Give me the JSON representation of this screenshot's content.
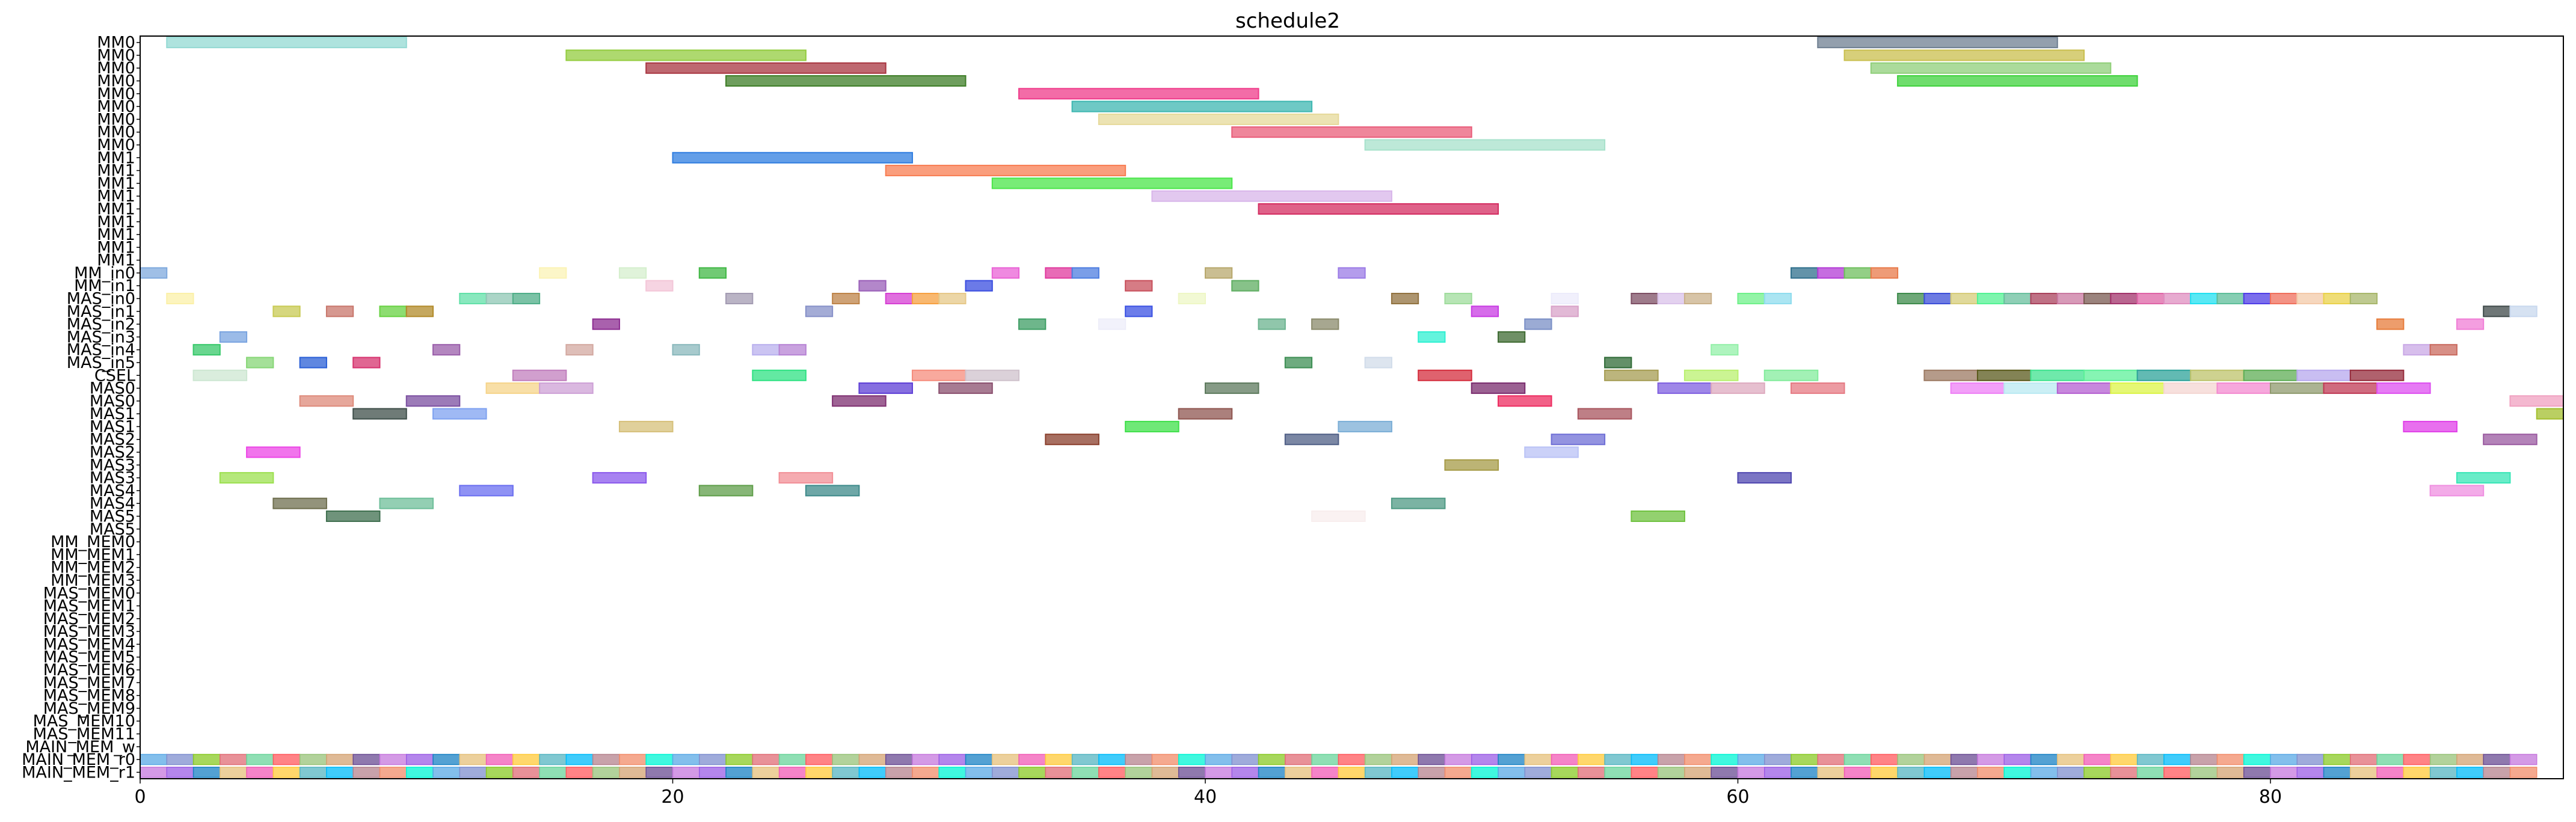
{
  "chart_data": {
    "type": "gantt",
    "title": "schedule2",
    "xlim": [
      0,
      91
    ],
    "xticks": [
      0,
      20,
      40,
      60,
      80
    ],
    "grid": false,
    "rows": [
      "MM0",
      "MM0",
      "MM0",
      "MM0",
      "MM0",
      "MM0",
      "MM0",
      "MM0",
      "MM0",
      "MM1",
      "MM1",
      "MM1",
      "MM1",
      "MM1",
      "MM1",
      "MM1",
      "MM1",
      "MM1",
      "MM_in0",
      "MM_in1",
      "MAS_in0",
      "MAS_in1",
      "MAS_in2",
      "MAS_in3",
      "MAS_in4",
      "MAS_in5",
      "CSEL",
      "MAS0",
      "MAS0",
      "MAS1",
      "MAS1",
      "MAS2",
      "MAS2",
      "MAS3",
      "MAS3",
      "MAS4",
      "MAS4",
      "MAS5",
      "MAS5",
      "MM_MEM0",
      "MM_MEM1",
      "MM_MEM2",
      "MM_MEM3",
      "MAS_MEM0",
      "MAS_MEM1",
      "MAS_MEM2",
      "MAS_MEM3",
      "MAS_MEM4",
      "MAS_MEM5",
      "MAS_MEM6",
      "MAS_MEM7",
      "MAS_MEM8",
      "MAS_MEM9",
      "MAS_MEM10",
      "MAS_MEM11",
      "MAIN_MEM_w",
      "MAIN_MEM_r0",
      "MAIN_MEM_r1"
    ],
    "palette": [
      "#5aa9e6",
      "#e06c75",
      "#98c379",
      "#c678dd",
      "#e5c07b",
      "#56b6c2",
      "#f28c6a",
      "#7f8fcf",
      "#6ad49b",
      "#d4a373",
      "#9b5de5",
      "#f15bb5",
      "#00bbf9",
      "#00f5d4",
      "#8ac926",
      "#ff595e",
      "#6a4c93",
      "#1982c4",
      "#ffca3a",
      "#b5838d"
    ],
    "bars": [
      {
        "row": 0,
        "start": 1,
        "end": 10,
        "color": "#93d9d3"
      },
      {
        "row": 0,
        "start": 63,
        "end": 72,
        "color": "#6f7f91"
      },
      {
        "row": 1,
        "start": 16,
        "end": 25,
        "color": "#93cc3f"
      },
      {
        "row": 1,
        "start": 64,
        "end": 73,
        "color": "#c9bf4e"
      },
      {
        "row": 2,
        "start": 19,
        "end": 28,
        "color": "#a83540"
      },
      {
        "row": 2,
        "start": 65,
        "end": 74,
        "color": "#8fcf79"
      },
      {
        "row": 3,
        "start": 22,
        "end": 31,
        "color": "#3e7d27"
      },
      {
        "row": 3,
        "start": 66,
        "end": 75,
        "color": "#3fd23c"
      },
      {
        "row": 4,
        "start": 33,
        "end": 42,
        "color": "#ef3b8a"
      },
      {
        "row": 5,
        "start": 35,
        "end": 44,
        "color": "#3eb7b1"
      },
      {
        "row": 6,
        "start": 36,
        "end": 45,
        "color": "#e6d99a"
      },
      {
        "row": 7,
        "start": 41,
        "end": 50,
        "color": "#e95d7a"
      },
      {
        "row": 8,
        "start": 46,
        "end": 55,
        "color": "#a7e1cb"
      },
      {
        "row": 9,
        "start": 20,
        "end": 29,
        "color": "#2f7de0"
      },
      {
        "row": 10,
        "start": 28,
        "end": 37,
        "color": "#f87d52"
      },
      {
        "row": 11,
        "start": 32,
        "end": 41,
        "color": "#4be64a"
      },
      {
        "row": 12,
        "start": 38,
        "end": 47,
        "color": "#d8b5ea"
      },
      {
        "row": 13,
        "start": 42,
        "end": 51,
        "color": "#d42d61"
      },
      {
        "row": 18,
        "start": 0,
        "end": 1,
        "color": "#7fa9dd"
      },
      {
        "row": 18,
        "start": 15,
        "end": 16,
        "color": "#fbf3b5"
      },
      {
        "row": 18,
        "start": 18,
        "end": 19,
        "color": "#d5efcd"
      },
      {
        "row": 18,
        "start": 21,
        "end": 22,
        "color": "#41b845"
      },
      {
        "row": 18,
        "start": 32,
        "end": 33,
        "color": "#ea62d6"
      },
      {
        "row": 18,
        "start": 34,
        "end": 35,
        "color": "#e03a9e"
      },
      {
        "row": 18,
        "start": 35,
        "end": 36,
        "color": "#4d7de0"
      },
      {
        "row": 18,
        "start": 40,
        "end": 41,
        "color": "#b8a86d"
      },
      {
        "row": 18,
        "start": 45,
        "end": 46,
        "color": "#9b7be6"
      },
      {
        "row": 18,
        "start": 62,
        "end": 63,
        "color": "#2f6f8c"
      },
      {
        "row": 18,
        "start": 63,
        "end": 64,
        "color": "#b33bd6"
      },
      {
        "row": 18,
        "start": 64,
        "end": 65,
        "color": "#6fbf5e"
      },
      {
        "row": 18,
        "start": 65,
        "end": 66,
        "color": "#e87a4a"
      },
      {
        "row": 19,
        "start": 19,
        "end": 20,
        "color": "#f3c6d8"
      },
      {
        "row": 19,
        "start": 27,
        "end": 28,
        "color": "#9a5fb8"
      },
      {
        "row": 19,
        "start": 31,
        "end": 32,
        "color": "#3a4de0"
      },
      {
        "row": 19,
        "start": 37,
        "end": 38,
        "color": "#c8505c"
      },
      {
        "row": 19,
        "start": 41,
        "end": 42,
        "color": "#5fae62"
      },
      {
        "row": 20,
        "start": 1,
        "end": 2,
        "color": "#fbf0a8"
      },
      {
        "row": 20,
        "start": 12,
        "end": 13,
        "color": "#62e0a8"
      },
      {
        "row": 20,
        "start": 13,
        "end": 14,
        "color": "#8fc7b4"
      },
      {
        "row": 20,
        "start": 14,
        "end": 15,
        "color": "#4fae88"
      },
      {
        "row": 20,
        "start": 22,
        "end": 23,
        "color": "#a39bb2"
      },
      {
        "row": 20,
        "start": 26,
        "end": 27,
        "color": "#bd8348"
      },
      {
        "row": 20,
        "start": 28,
        "end": 29,
        "color": "#d63fd3"
      },
      {
        "row": 20,
        "start": 29,
        "end": 30,
        "color": "#f6a040"
      },
      {
        "row": 20,
        "start": 30,
        "end": 31,
        "color": "#e6c888"
      },
      {
        "row": 20,
        "start": 39,
        "end": 40,
        "color": "#eef7c5"
      },
      {
        "row": 20,
        "start": 47,
        "end": 48,
        "color": "#91723f"
      },
      {
        "row": 20,
        "start": 49,
        "end": 50,
        "color": "#9fdc9c"
      },
      {
        "row": 20,
        "start": 53,
        "end": 54,
        "color": "#ecebfb"
      },
      {
        "row": 20,
        "start": 56,
        "end": 57,
        "color": "#7d4f64"
      },
      {
        "row": 20,
        "start": 57,
        "end": 58,
        "color": "#dac2e9"
      },
      {
        "row": 20,
        "start": 58,
        "end": 59,
        "color": "#c9b08a"
      },
      {
        "row": 20,
        "start": 60,
        "end": 61,
        "color": "#6ff08a"
      },
      {
        "row": 20,
        "start": 61,
        "end": 62,
        "color": "#8fdcee"
      },
      {
        "row": 20,
        "start": 66,
        "end": 67,
        "color": "#3d8b4b"
      },
      {
        "row": 20,
        "start": 67,
        "end": 68,
        "color": "#3c4fd8"
      },
      {
        "row": 20,
        "start": 68,
        "end": 69,
        "color": "#d6cc79"
      },
      {
        "row": 20,
        "start": 69,
        "end": 70,
        "color": "#53f293"
      },
      {
        "row": 20,
        "start": 70,
        "end": 71,
        "color": "#6abf9e"
      },
      {
        "row": 20,
        "start": 71,
        "end": 72,
        "color": "#a9425c"
      },
      {
        "row": 20,
        "start": 72,
        "end": 73,
        "color": "#c978a0"
      },
      {
        "row": 20,
        "start": 73,
        "end": 74,
        "color": "#7a5a52"
      },
      {
        "row": 20,
        "start": 74,
        "end": 75,
        "color": "#a2336b"
      },
      {
        "row": 20,
        "start": 75,
        "end": 76,
        "color": "#de64a6"
      },
      {
        "row": 20,
        "start": 76,
        "end": 77,
        "color": "#df8fc0"
      },
      {
        "row": 20,
        "start": 77,
        "end": 78,
        "color": "#21e0f0"
      },
      {
        "row": 20,
        "start": 78,
        "end": 79,
        "color": "#5ebd99"
      },
      {
        "row": 20,
        "start": 79,
        "end": 80,
        "color": "#4f3de6"
      },
      {
        "row": 20,
        "start": 80,
        "end": 81,
        "color": "#ef6f5c"
      },
      {
        "row": 20,
        "start": 81,
        "end": 82,
        "color": "#f3c9a8"
      },
      {
        "row": 20,
        "start": 82,
        "end": 83,
        "color": "#e9d24a"
      },
      {
        "row": 20,
        "start": 83,
        "end": 84,
        "color": "#a8b76b"
      },
      {
        "row": 21,
        "start": 5,
        "end": 6,
        "color": "#c8ca53"
      },
      {
        "row": 21,
        "start": 7,
        "end": 8,
        "color": "#c8766b"
      },
      {
        "row": 21,
        "start": 9,
        "end": 10,
        "color": "#67d242"
      },
      {
        "row": 21,
        "start": 10,
        "end": 11,
        "color": "#b28b2a"
      },
      {
        "row": 21,
        "start": 25,
        "end": 26,
        "color": "#8690c8"
      },
      {
        "row": 21,
        "start": 37,
        "end": 38,
        "color": "#3b52e3"
      },
      {
        "row": 21,
        "start": 50,
        "end": 51,
        "color": "#c83be3"
      },
      {
        "row": 21,
        "start": 53,
        "end": 54,
        "color": "#d8a2c8"
      },
      {
        "row": 21,
        "start": 88,
        "end": 89,
        "color": "#3f4a4a"
      },
      {
        "row": 21,
        "start": 89,
        "end": 90,
        "color": "#c8d8ee"
      },
      {
        "row": 22,
        "start": 17,
        "end": 18,
        "color": "#8c2c91"
      },
      {
        "row": 22,
        "start": 33,
        "end": 34,
        "color": "#3e9e64"
      },
      {
        "row": 22,
        "start": 36,
        "end": 37,
        "color": "#ededf9"
      },
      {
        "row": 22,
        "start": 42,
        "end": 43,
        "color": "#6bb38f"
      },
      {
        "row": 22,
        "start": 44,
        "end": 45,
        "color": "#8a8a6b"
      },
      {
        "row": 22,
        "start": 52,
        "end": 53,
        "color": "#7a8fc6"
      },
      {
        "row": 22,
        "start": 84,
        "end": 85,
        "color": "#e77c3b"
      },
      {
        "row": 22,
        "start": 87,
        "end": 88,
        "color": "#f07ed6"
      },
      {
        "row": 23,
        "start": 3,
        "end": 4,
        "color": "#7aa4e0"
      },
      {
        "row": 23,
        "start": 48,
        "end": 49,
        "color": "#2ff0d2"
      },
      {
        "row": 23,
        "start": 51,
        "end": 52,
        "color": "#3f6b33"
      },
      {
        "row": 24,
        "start": 2,
        "end": 3,
        "color": "#37c86a"
      },
      {
        "row": 24,
        "start": 11,
        "end": 12,
        "color": "#9a5eaa"
      },
      {
        "row": 24,
        "start": 16,
        "end": 17,
        "color": "#d3a8a0"
      },
      {
        "row": 24,
        "start": 20,
        "end": 21,
        "color": "#89b8bc"
      },
      {
        "row": 24,
        "start": 23,
        "end": 24,
        "color": "#b9b0ee"
      },
      {
        "row": 24,
        "start": 24,
        "end": 25,
        "color": "#b783d4"
      },
      {
        "row": 24,
        "start": 59,
        "end": 60,
        "color": "#93f0a8"
      },
      {
        "row": 24,
        "start": 85,
        "end": 86,
        "color": "#c9a8e6"
      },
      {
        "row": 24,
        "start": 86,
        "end": 87,
        "color": "#c96a5e"
      },
      {
        "row": 25,
        "start": 4,
        "end": 5,
        "color": "#86d676"
      },
      {
        "row": 25,
        "start": 6,
        "end": 7,
        "color": "#2a5fd6"
      },
      {
        "row": 25,
        "start": 8,
        "end": 9,
        "color": "#d6336e"
      },
      {
        "row": 25,
        "start": 43,
        "end": 44,
        "color": "#3e8f54"
      },
      {
        "row": 25,
        "start": 46,
        "end": 47,
        "color": "#d1dcea"
      },
      {
        "row": 25,
        "start": 55,
        "end": 56,
        "color": "#2f6b36"
      },
      {
        "row": 26,
        "start": 2,
        "end": 4,
        "color": "#cde7d2"
      },
      {
        "row": 26,
        "start": 14,
        "end": 16,
        "color": "#c17fbd"
      },
      {
        "row": 26,
        "start": 23,
        "end": 25,
        "color": "#2fe283"
      },
      {
        "row": 26,
        "start": 29,
        "end": 31,
        "color": "#f58c7c"
      },
      {
        "row": 26,
        "start": 31,
        "end": 33,
        "color": "#cfc2cc"
      },
      {
        "row": 26,
        "start": 48,
        "end": 50,
        "color": "#d42e3d"
      },
      {
        "row": 26,
        "start": 55,
        "end": 57,
        "color": "#a59c52"
      },
      {
        "row": 26,
        "start": 58,
        "end": 60,
        "color": "#b9f06f"
      },
      {
        "row": 26,
        "start": 61,
        "end": 63,
        "color": "#83ec9c"
      },
      {
        "row": 26,
        "start": 67,
        "end": 69,
        "color": "#9c7a63"
      },
      {
        "row": 26,
        "start": 69,
        "end": 71,
        "color": "#5a5a1c"
      },
      {
        "row": 26,
        "start": 71,
        "end": 73,
        "color": "#3fe28f"
      },
      {
        "row": 26,
        "start": 73,
        "end": 75,
        "color": "#5ef09a"
      },
      {
        "row": 26,
        "start": 75,
        "end": 77,
        "color": "#2ea39a"
      },
      {
        "row": 26,
        "start": 77,
        "end": 79,
        "color": "#bdc36b"
      },
      {
        "row": 26,
        "start": 79,
        "end": 81,
        "color": "#5fae56"
      },
      {
        "row": 26,
        "start": 81,
        "end": 83,
        "color": "#b7a8ee"
      },
      {
        "row": 26,
        "start": 83,
        "end": 85,
        "color": "#962c3c"
      },
      {
        "row": 27,
        "start": 13,
        "end": 15,
        "color": "#f6d48a"
      },
      {
        "row": 27,
        "start": 15,
        "end": 17,
        "color": "#cda0d6"
      },
      {
        "row": 27,
        "start": 27,
        "end": 29,
        "color": "#5e3fd6"
      },
      {
        "row": 27,
        "start": 30,
        "end": 32,
        "color": "#8a4f6e"
      },
      {
        "row": 27,
        "start": 40,
        "end": 42,
        "color": "#5d7a5d"
      },
      {
        "row": 27,
        "start": 50,
        "end": 52,
        "color": "#7a2c6e"
      },
      {
        "row": 27,
        "start": 57,
        "end": 59,
        "color": "#7f5fe0"
      },
      {
        "row": 27,
        "start": 59,
        "end": 61,
        "color": "#deaabf"
      },
      {
        "row": 27,
        "start": 62,
        "end": 64,
        "color": "#e57a83"
      },
      {
        "row": 27,
        "start": 68,
        "end": 70,
        "color": "#ee7ff6"
      },
      {
        "row": 27,
        "start": 70,
        "end": 72,
        "color": "#b9e9f2"
      },
      {
        "row": 27,
        "start": 72,
        "end": 74,
        "color": "#b45fd1"
      },
      {
        "row": 27,
        "start": 74,
        "end": 76,
        "color": "#dcf447"
      },
      {
        "row": 27,
        "start": 76,
        "end": 78,
        "color": "#f4d6d2"
      },
      {
        "row": 27,
        "start": 78,
        "end": 80,
        "color": "#f389d0"
      },
      {
        "row": 27,
        "start": 80,
        "end": 82,
        "color": "#8f9a6e"
      },
      {
        "row": 27,
        "start": 82,
        "end": 84,
        "color": "#bf3954"
      },
      {
        "row": 27,
        "start": 84,
        "end": 86,
        "color": "#dd4ff0"
      },
      {
        "row": 28,
        "start": 6,
        "end": 8,
        "color": "#de8a7a"
      },
      {
        "row": 28,
        "start": 10,
        "end": 12,
        "color": "#7b4fa0"
      },
      {
        "row": 28,
        "start": 26,
        "end": 28,
        "color": "#7e2f70"
      },
      {
        "row": 28,
        "start": 51,
        "end": 53,
        "color": "#ed2c60"
      },
      {
        "row": 28,
        "start": 89,
        "end": 91,
        "color": "#f0a0c0"
      },
      {
        "row": 29,
        "start": 8,
        "end": 10,
        "color": "#3f4f4a"
      },
      {
        "row": 29,
        "start": 11,
        "end": 13,
        "color": "#7fa2f0"
      },
      {
        "row": 29,
        "start": 39,
        "end": 41,
        "color": "#8f5550"
      },
      {
        "row": 29,
        "start": 54,
        "end": 56,
        "color": "#a8545d"
      },
      {
        "row": 29,
        "start": 90,
        "end": 92,
        "color": "#a3bf2e"
      },
      {
        "row": 30,
        "start": 18,
        "end": 20,
        "color": "#d6c07a"
      },
      {
        "row": 30,
        "start": 37,
        "end": 39,
        "color": "#3fe04a"
      },
      {
        "row": 30,
        "start": 45,
        "end": 47,
        "color": "#7baed6"
      },
      {
        "row": 30,
        "start": 85,
        "end": 87,
        "color": "#e03fe8"
      },
      {
        "row": 31,
        "start": 34,
        "end": 36,
        "color": "#8a3f2c"
      },
      {
        "row": 31,
        "start": 43,
        "end": 45,
        "color": "#4f5f86"
      },
      {
        "row": 31,
        "start": 53,
        "end": 55,
        "color": "#6f6fd6"
      },
      {
        "row": 31,
        "start": 88,
        "end": 90,
        "color": "#9a5aa0"
      },
      {
        "row": 32,
        "start": 4,
        "end": 6,
        "color": "#ec45e6"
      },
      {
        "row": 32,
        "start": 52,
        "end": 54,
        "color": "#b9c2f6"
      },
      {
        "row": 33,
        "start": 49,
        "end": 51,
        "color": "#a69b47"
      },
      {
        "row": 34,
        "start": 3,
        "end": 5,
        "color": "#9ce04f"
      },
      {
        "row": 34,
        "start": 17,
        "end": 19,
        "color": "#8a58ec"
      },
      {
        "row": 34,
        "start": 24,
        "end": 26,
        "color": "#f28f96"
      },
      {
        "row": 34,
        "start": 60,
        "end": 62,
        "color": "#4f47b0"
      },
      {
        "row": 34,
        "start": 87,
        "end": 89,
        "color": "#37e6b6"
      },
      {
        "row": 35,
        "start": 12,
        "end": 14,
        "color": "#6a6ef0"
      },
      {
        "row": 35,
        "start": 21,
        "end": 23,
        "color": "#5f9e4a"
      },
      {
        "row": 35,
        "start": 25,
        "end": 27,
        "color": "#3e8a8a"
      },
      {
        "row": 35,
        "start": 86,
        "end": 88,
        "color": "#ef8fe0"
      },
      {
        "row": 36,
        "start": 5,
        "end": 7,
        "color": "#6f6f4f"
      },
      {
        "row": 36,
        "start": 9,
        "end": 11,
        "color": "#6fbf9a"
      },
      {
        "row": 36,
        "start": 47,
        "end": 49,
        "color": "#4f9a84"
      },
      {
        "row": 37,
        "start": 7,
        "end": 9,
        "color": "#3f6f4f"
      },
      {
        "row": 37,
        "start": 44,
        "end": 46,
        "color": "#f8eeee"
      },
      {
        "row": 37,
        "start": 56,
        "end": 58,
        "color": "#6fc23f"
      }
    ]
  }
}
